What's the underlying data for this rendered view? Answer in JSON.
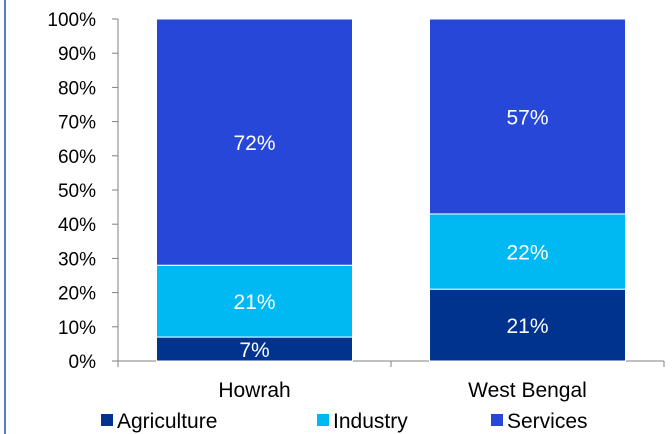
{
  "chart_data": {
    "type": "bar",
    "stacked": true,
    "title": "",
    "xlabel": "",
    "ylabel": "",
    "categories": [
      "Howrah",
      "West Bengal"
    ],
    "series": [
      {
        "name": "Agriculture",
        "values": [
          7,
          21
        ],
        "color": "#00338d"
      },
      {
        "name": "Industry",
        "values": [
          21,
          22
        ],
        "color": "#00b9f2"
      },
      {
        "name": "Services",
        "values": [
          72,
          57
        ],
        "color": "#2647d8"
      }
    ],
    "data_labels": [
      [
        "7%",
        "21%"
      ],
      [
        "21%",
        "22%"
      ],
      [
        "72%",
        "57%"
      ]
    ],
    "ylim": [
      0,
      100
    ],
    "yticks": [
      0,
      10,
      20,
      30,
      40,
      50,
      60,
      70,
      80,
      90,
      100
    ],
    "ytick_labels": [
      "0%",
      "10%",
      "20%",
      "30%",
      "40%",
      "50%",
      "60%",
      "70%",
      "80%",
      "90%",
      "100%"
    ],
    "grid": false,
    "legend_position": "bottom",
    "label_color": "#ffffff",
    "border_color": "#5b7fc7"
  }
}
